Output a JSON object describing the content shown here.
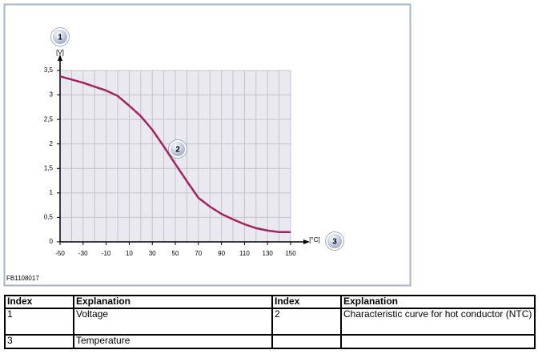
{
  "chart_data": {
    "type": "line",
    "y_label": "[V]",
    "x_label": "[°C]",
    "x": [
      -50,
      -30,
      -10,
      0,
      10,
      20,
      30,
      40,
      50,
      60,
      70,
      80,
      90,
      100,
      110,
      120,
      130,
      140,
      150
    ],
    "values": [
      3.38,
      3.25,
      3.09,
      2.98,
      2.78,
      2.57,
      2.29,
      1.95,
      1.59,
      1.24,
      0.9,
      0.72,
      0.57,
      0.46,
      0.36,
      0.28,
      0.23,
      0.2,
      0.2
    ],
    "color": "#a3245f",
    "xlim": [
      -50,
      150
    ],
    "xticks": [
      -50,
      -30,
      -10,
      10,
      30,
      50,
      70,
      90,
      110,
      130,
      150
    ],
    "ylim": [
      0,
      3.5
    ],
    "yticks": [
      0,
      {
        "value": 0.5,
        "label": "0,5"
      },
      1,
      {
        "value": 1.5,
        "label": "1,5"
      },
      2,
      {
        "value": 2.5,
        "label": "2,5"
      },
      3,
      {
        "value": 3.5,
        "label": "3,5"
      }
    ],
    "grid": true
  },
  "callouts": [
    "1",
    "2",
    "3"
  ],
  "figure_id": "FB1108017",
  "table": {
    "header": [
      "Index",
      "Explanation",
      "Index",
      "Explanation"
    ],
    "rows": [
      [
        "1",
        "Voltage",
        "2",
        "Characteristic curve for hot conductor (NTC)"
      ],
      [
        "3",
        "Temperature",
        "",
        ""
      ]
    ]
  }
}
